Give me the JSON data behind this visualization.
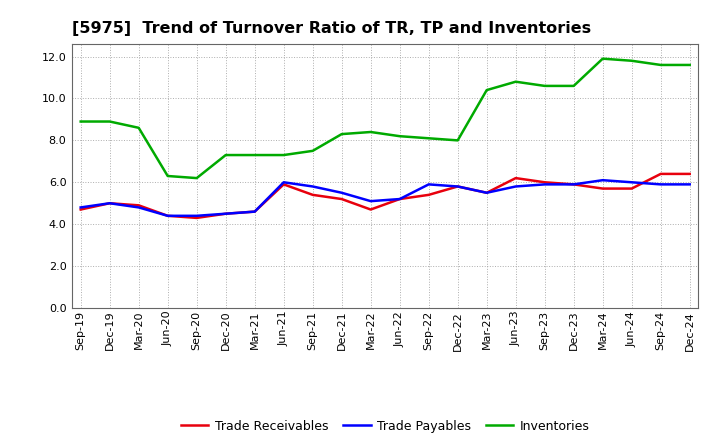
{
  "title": "[5975]  Trend of Turnover Ratio of TR, TP and Inventories",
  "labels": [
    "Sep-19",
    "Dec-19",
    "Mar-20",
    "Jun-20",
    "Sep-20",
    "Dec-20",
    "Mar-21",
    "Jun-21",
    "Sep-21",
    "Dec-21",
    "Mar-22",
    "Jun-22",
    "Sep-22",
    "Dec-22",
    "Mar-23",
    "Jun-23",
    "Sep-23",
    "Dec-23",
    "Mar-24",
    "Jun-24",
    "Sep-24",
    "Dec-24"
  ],
  "trade_receivables": [
    4.7,
    5.0,
    4.9,
    4.4,
    4.3,
    4.5,
    4.6,
    5.9,
    5.4,
    5.2,
    4.7,
    5.2,
    5.4,
    5.8,
    5.5,
    6.2,
    6.0,
    5.9,
    5.7,
    5.7,
    6.4,
    6.4
  ],
  "trade_payables": [
    4.8,
    5.0,
    4.8,
    4.4,
    4.4,
    4.5,
    4.6,
    6.0,
    5.8,
    5.5,
    5.1,
    5.2,
    5.9,
    5.8,
    5.5,
    5.8,
    5.9,
    5.9,
    6.1,
    6.0,
    5.9,
    5.9
  ],
  "inventories": [
    8.9,
    8.9,
    8.6,
    6.3,
    6.2,
    7.3,
    7.3,
    7.3,
    7.5,
    8.3,
    8.4,
    8.2,
    8.1,
    8.0,
    10.4,
    10.8,
    10.6,
    10.6,
    11.9,
    11.8,
    11.6,
    11.6
  ],
  "tr_color": "#e8000d",
  "tp_color": "#0000ff",
  "inv_color": "#00aa00",
  "ylim": [
    0.0,
    12.6
  ],
  "yticks": [
    0.0,
    2.0,
    4.0,
    6.0,
    8.0,
    10.0,
    12.0
  ],
  "background_color": "#ffffff",
  "grid_color": "#999999",
  "legend_tr": "Trade Receivables",
  "legend_tp": "Trade Payables",
  "legend_inv": "Inventories",
  "title_fontsize": 11.5,
  "tick_fontsize": 8,
  "legend_fontsize": 9
}
